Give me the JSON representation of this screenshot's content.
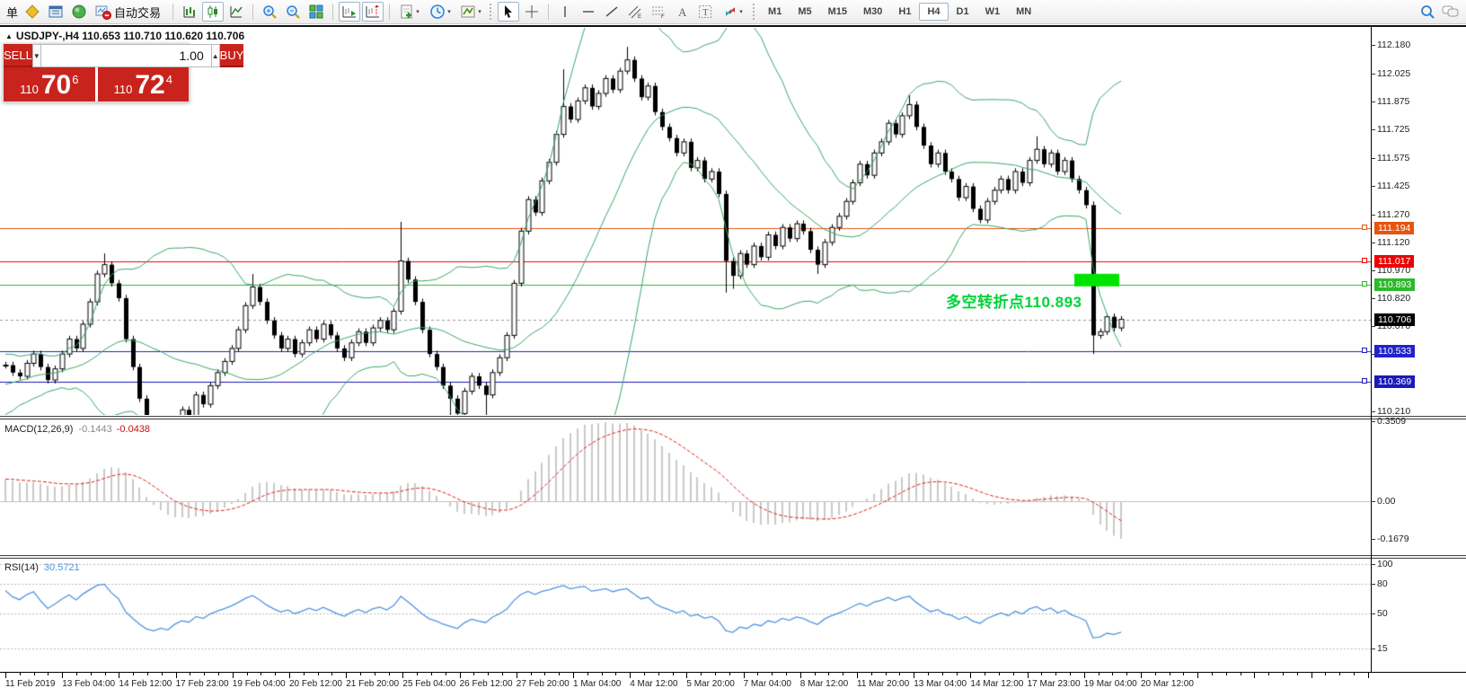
{
  "toolbar": {
    "new_order_partial": "单",
    "autotrading_label": "自动交易",
    "timeframes": [
      "M1",
      "M5",
      "M15",
      "M30",
      "H1",
      "H4",
      "D1",
      "W1",
      "MN"
    ],
    "active_timeframe": "H4"
  },
  "chart_header": {
    "title": "USDJPY-,H4  110.653 110.710 110.620 110.706"
  },
  "trade_panel": {
    "sell_label": "SELL",
    "buy_label": "BUY",
    "volume": "1.00",
    "sell_small": "110",
    "sell_big": "70",
    "sell_sup": "6",
    "buy_small": "110",
    "buy_big": "72",
    "buy_sup": "4"
  },
  "annotation": {
    "text": "多空转折点110.893"
  },
  "macd_panel": {
    "label": "MACD(12,26,9)",
    "value_main": "-0.1443",
    "value_signal": "-0.0438",
    "scale": [
      "0.3509",
      "0.00",
      "-0.1679"
    ]
  },
  "rsi_panel": {
    "label": "RSI(14)",
    "value": "30.5721",
    "scale": [
      "100",
      "80",
      "50",
      "15"
    ],
    "levels": [
      100,
      80,
      50,
      15
    ]
  },
  "chart_data": {
    "type": "candlestick",
    "symbol": "USDJPY-",
    "timeframe": "H4",
    "ohlc_display": {
      "open": "110.653",
      "high": "110.710",
      "low": "110.620",
      "close": "110.706"
    },
    "y_range": [
      110.19,
      112.27
    ],
    "price_ticks": [
      112.18,
      112.025,
      111.875,
      111.725,
      111.575,
      111.425,
      111.27,
      111.12,
      110.97,
      110.82,
      110.67,
      110.52,
      110.21
    ],
    "hlines": [
      {
        "price": 111.194,
        "color": "#e8530e",
        "label": "111.194"
      },
      {
        "price": 111.017,
        "color": "#ee0000",
        "label": "111.017"
      },
      {
        "price": 110.893,
        "color": "#2db82d",
        "label": "110.893"
      },
      {
        "price": 110.533,
        "color": "#2222cc",
        "label": "110.533"
      },
      {
        "price": 110.369,
        "color": "#1a1ab8",
        "label": "110.369"
      }
    ],
    "current_price": {
      "price": 110.706,
      "label": "110.706",
      "color": "#000000"
    },
    "bollinger": {
      "period": 20,
      "deviation": 2,
      "color": "#3aa666"
    },
    "macd": {
      "fast": 12,
      "slow": 26,
      "signal": 9,
      "hist_color": "#c9c9c9",
      "signal_color": "#e02020"
    },
    "rsi": {
      "period": 14,
      "color": "#4f94de"
    },
    "warmup_closes": [
      109.9,
      109.95,
      109.92,
      110.0,
      110.05,
      110.02,
      110.1,
      110.08,
      110.15,
      110.12,
      110.18,
      110.22,
      110.2,
      110.26,
      110.24,
      110.3,
      110.28,
      110.34,
      110.32,
      110.36,
      110.35,
      110.4,
      110.38,
      110.42,
      110.4,
      110.44,
      110.42,
      110.45,
      110.43,
      110.46
    ],
    "closes": [
      110.46,
      110.42,
      110.4,
      110.47,
      110.52,
      110.45,
      110.38,
      110.44,
      110.52,
      110.6,
      110.55,
      110.68,
      110.8,
      110.95,
      111.0,
      110.9,
      110.82,
      110.6,
      110.45,
      110.28,
      110.12,
      110.05,
      110.1,
      110.04,
      110.15,
      110.22,
      110.18,
      110.3,
      110.25,
      110.35,
      110.42,
      110.48,
      110.55,
      110.65,
      110.78,
      110.88,
      110.8,
      110.7,
      110.62,
      110.55,
      110.6,
      110.52,
      110.58,
      110.65,
      110.6,
      110.68,
      110.62,
      110.55,
      110.5,
      110.58,
      110.64,
      110.58,
      110.66,
      110.7,
      110.65,
      110.75,
      111.02,
      110.92,
      110.8,
      110.65,
      110.52,
      110.45,
      110.35,
      110.28,
      110.2,
      110.32,
      110.4,
      110.35,
      110.3,
      110.42,
      110.5,
      110.62,
      110.9,
      111.18,
      111.35,
      111.28,
      111.45,
      111.55,
      111.7,
      111.85,
      111.78,
      111.88,
      111.95,
      111.85,
      111.92,
      112.0,
      111.94,
      112.04,
      112.1,
      112.0,
      111.9,
      111.96,
      111.82,
      111.74,
      111.68,
      111.6,
      111.66,
      111.52,
      111.56,
      111.46,
      111.5,
      111.38,
      111.02,
      110.94,
      111.06,
      111.0,
      111.1,
      111.04,
      111.16,
      111.1,
      111.2,
      111.14,
      111.22,
      111.18,
      111.08,
      111.0,
      111.12,
      111.2,
      111.26,
      111.34,
      111.44,
      111.54,
      111.48,
      111.6,
      111.66,
      111.76,
      111.7,
      111.8,
      111.86,
      111.74,
      111.64,
      111.54,
      111.6,
      111.5,
      111.46,
      111.36,
      111.42,
      111.3,
      111.24,
      111.34,
      111.4,
      111.46,
      111.4,
      111.5,
      111.44,
      111.56,
      111.62,
      111.54,
      111.6,
      111.5,
      111.56,
      111.46,
      111.4,
      111.32,
      110.62,
      110.64,
      110.72,
      110.66,
      110.706
    ],
    "wicks": {
      "14": {
        "h": 111.06
      },
      "21": {
        "l": 110.0
      },
      "23": {
        "l": 110.01
      },
      "35": {
        "h": 110.95
      },
      "56": {
        "h": 111.23
      },
      "63": {
        "l": 110.12
      },
      "68": {
        "l": 110.15
      },
      "79": {
        "h": 112.05
      },
      "88": {
        "h": 112.17
      },
      "102": {
        "l": 110.85
      },
      "103": {
        "l": 110.87
      },
      "115": {
        "l": 110.95
      },
      "128": {
        "h": 111.91
      },
      "146": {
        "h": 111.69
      },
      "154": {
        "h": 111.34,
        "l": 110.52
      }
    },
    "time_labels": [
      "11 Feb 2019",
      "13 Feb 04:00",
      "14 Feb 12:00",
      "17 Feb 23:00",
      "19 Feb 04:00",
      "20 Feb 12:00",
      "21 Feb 20:00",
      "25 Feb 04:00",
      "26 Feb 12:00",
      "27 Feb 20:00",
      "1 Mar 04:00",
      "4 Mar 12:00",
      "5 Mar 20:00",
      "7 Mar 04:00",
      "8 Mar 12:00",
      "11 Mar 20:00",
      "13 Mar 04:00",
      "14 Mar 12:00",
      "17 Mar 23:00",
      "19 Mar 04:00",
      "20 Mar 12:00"
    ]
  }
}
